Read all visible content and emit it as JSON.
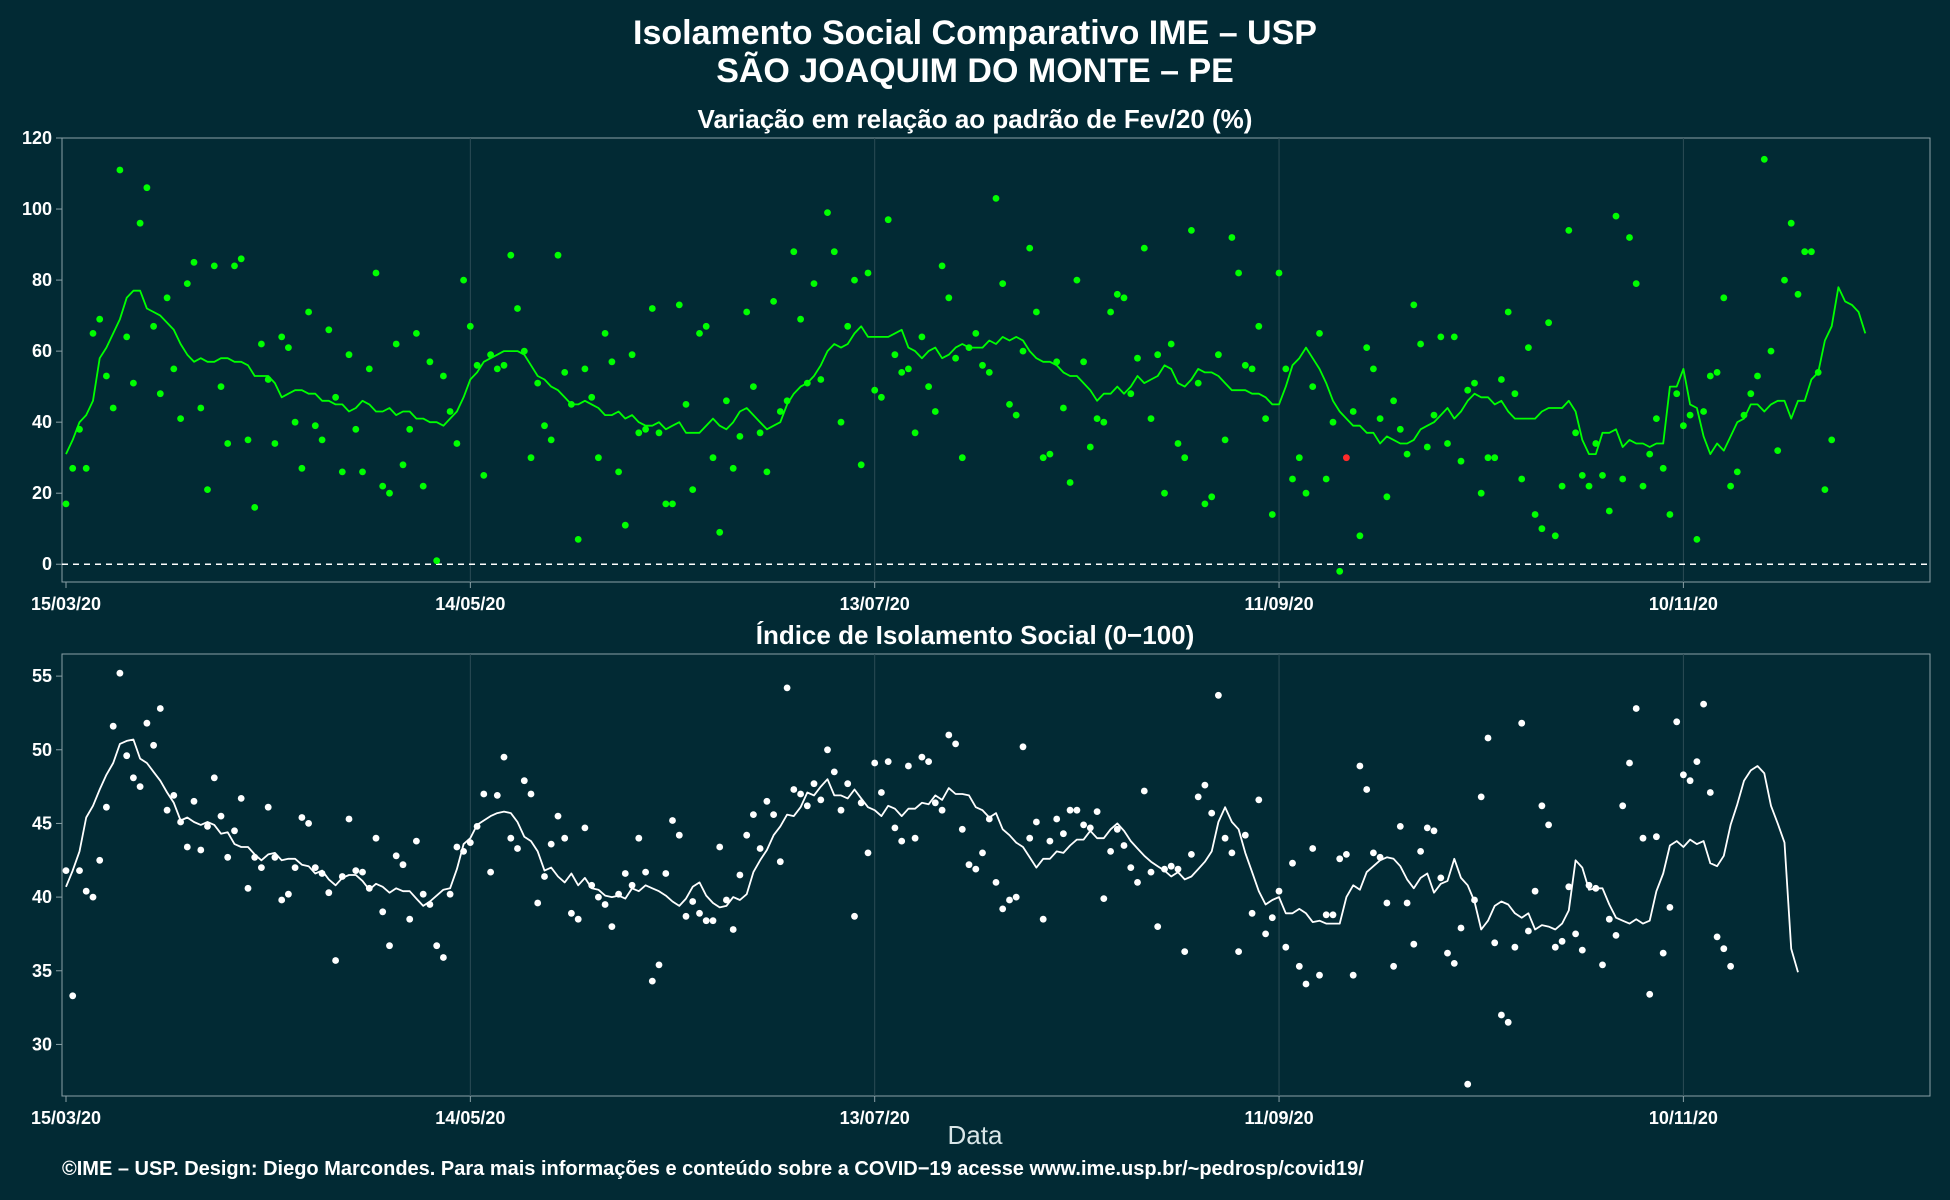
{
  "header": {
    "title_line1": "Isolamento Social Comparativo IME – USP",
    "title_line2": "SÃO JOAQUIM DO MONTE – PE"
  },
  "footer": {
    "credit": "©IME – USP. Design: Diego Marcondes. Para mais informações e conteúdo sobre a COVID−19 acesse www.ime.usp.br/~pedrosp/covid19/"
  },
  "colors": {
    "background": "#022a34",
    "grid": "#2c4c55",
    "panel_border": "#8aa0a6",
    "variation_series": "#00ff00",
    "negative_point": "#ff2a2a",
    "index_series": "#ffffff"
  },
  "chart_data": [
    {
      "type": "scatter",
      "title": "Variação em relação ao padrão de Fev/20 (%)",
      "xlabel": "",
      "ylabel": "",
      "x_start": "15/03/20",
      "x_end": "16/12/20",
      "x_tick_labels": [
        "15/03/20",
        "14/05/20",
        "13/07/20",
        "11/09/20",
        "10/11/20"
      ],
      "ylim": [
        -5,
        120
      ],
      "y_ticks": [
        0,
        20,
        40,
        60,
        80,
        100,
        120
      ],
      "reference_line": 0,
      "grid": true,
      "daily_points": [
        17,
        27,
        38,
        27,
        65,
        69,
        53,
        44,
        111,
        64,
        51,
        96,
        106,
        67,
        48,
        75,
        55,
        41,
        79,
        85,
        44,
        21,
        84,
        50,
        34,
        84,
        86,
        35,
        16,
        62,
        52,
        34,
        64,
        61,
        40,
        27,
        71,
        39,
        35,
        66,
        47,
        26,
        59,
        38,
        26,
        55,
        82,
        22,
        20,
        62,
        28,
        38,
        65,
        22,
        57,
        1,
        53,
        43,
        34,
        80,
        67,
        56,
        25,
        59,
        55,
        56,
        87,
        72,
        60,
        30,
        51,
        39,
        35,
        87,
        54,
        45,
        7,
        55,
        47,
        30,
        65,
        57,
        26,
        11,
        59,
        37,
        38,
        72,
        37,
        17,
        17,
        73,
        45,
        21,
        65,
        67,
        30,
        9,
        46,
        27,
        36,
        71,
        50,
        37,
        26,
        74,
        43,
        46,
        88,
        69,
        51,
        79,
        52,
        99,
        88,
        40,
        67,
        80,
        28,
        82,
        49,
        47,
        97,
        59,
        54,
        55,
        37,
        64,
        50,
        43,
        84,
        75,
        58,
        30,
        61,
        65,
        56,
        54,
        103,
        79,
        45,
        42,
        60,
        89,
        71,
        30,
        31,
        57,
        44,
        23,
        80,
        57,
        33,
        41,
        40,
        71,
        76,
        75,
        48,
        58,
        89,
        41,
        59,
        20,
        62,
        34,
        30,
        94,
        51,
        17,
        19,
        59,
        35,
        92,
        82,
        56,
        55,
        67,
        41,
        14,
        82,
        55,
        24,
        30,
        20,
        50,
        65,
        24,
        40,
        -2,
        30,
        43,
        8,
        61,
        55,
        41,
        19,
        46,
        38,
        31,
        73,
        62,
        33,
        42,
        64,
        34,
        64,
        29,
        49,
        51,
        20,
        30,
        30,
        52,
        71,
        48,
        24,
        61,
        14,
        10,
        68,
        8,
        22,
        94,
        37,
        25,
        22,
        34,
        25,
        15,
        98,
        24,
        92,
        79,
        22,
        31,
        41,
        27,
        14,
        48,
        39,
        42,
        7,
        43,
        53,
        54,
        75,
        22,
        26,
        42,
        48,
        53,
        114,
        60,
        32,
        80,
        96,
        76,
        88,
        88,
        54,
        21,
        35
      ],
      "moving_average": [
        31,
        35,
        40,
        42,
        46,
        58,
        61,
        65,
        69,
        75,
        77,
        77,
        72,
        71,
        70,
        68,
        66,
        62,
        59,
        57,
        58,
        57,
        57,
        58,
        58,
        57,
        57,
        56,
        53,
        53,
        53,
        51,
        47,
        48,
        49,
        49,
        48,
        48,
        46,
        46,
        45,
        45,
        43,
        44,
        46,
        45,
        43,
        43,
        44,
        42,
        43,
        43,
        41,
        41,
        40,
        40,
        39,
        41,
        43,
        47,
        52,
        54,
        57,
        58,
        59,
        60,
        60,
        60,
        59,
        56,
        53,
        52,
        50,
        49,
        47,
        45,
        45,
        46,
        45,
        44,
        42,
        42,
        43,
        41,
        42,
        40,
        39,
        39,
        40,
        38,
        39,
        40,
        37,
        37,
        37,
        39,
        41,
        39,
        38,
        40,
        43,
        44,
        42,
        40,
        38,
        39,
        40,
        45,
        48,
        50,
        51,
        53,
        56,
        60,
        62,
        61,
        62,
        65,
        67,
        64,
        64,
        64,
        64,
        65,
        66,
        61,
        60,
        58,
        60,
        61,
        58,
        59,
        61,
        62,
        61,
        61,
        61,
        63,
        62,
        64,
        63,
        64,
        63,
        60,
        58,
        57,
        57,
        56,
        54,
        53,
        53,
        51,
        49,
        46,
        48,
        48,
        50,
        48,
        50,
        53,
        51,
        52,
        53,
        56,
        55,
        51,
        50,
        52,
        55,
        54,
        54,
        53,
        51,
        49,
        49,
        49,
        48,
        48,
        47,
        45,
        45,
        50,
        56,
        58,
        61,
        58,
        55,
        51,
        46,
        43,
        41,
        39,
        39,
        37,
        37,
        34,
        36,
        35,
        34,
        34,
        35,
        38,
        39,
        40,
        42,
        44,
        41,
        43,
        46,
        48,
        47,
        47,
        45,
        46,
        43,
        41,
        41,
        41,
        41,
        43,
        44,
        44,
        44,
        46,
        43,
        35,
        31,
        31,
        37,
        37,
        38,
        33,
        35,
        34,
        34,
        33,
        34,
        34,
        50,
        50,
        55,
        45,
        44,
        36,
        31,
        34,
        32,
        36,
        40,
        41,
        45,
        45,
        43,
        45,
        46,
        46,
        41,
        46,
        46,
        52,
        54,
        63,
        67,
        78,
        74,
        73,
        71,
        65
      ],
      "negative_point_index": 190
    },
    {
      "type": "scatter",
      "title": "Índice de Isolamento Social (0−100)",
      "xlabel": "Data",
      "ylabel": "",
      "x_start": "15/03/20",
      "x_end": "16/12/20",
      "x_tick_labels": [
        "15/03/20",
        "14/05/20",
        "13/07/20",
        "11/09/20",
        "10/11/20"
      ],
      "ylim": [
        26.5,
        56.5
      ],
      "y_ticks": [
        30,
        35,
        40,
        45,
        50,
        55
      ],
      "grid": true,
      "daily_points": [
        41.8,
        33.3,
        41.8,
        40.4,
        40.0,
        42.5,
        46.1,
        51.6,
        55.2,
        49.6,
        48.1,
        47.5,
        51.8,
        50.3,
        52.8,
        45.9,
        46.9,
        45.1,
        43.4,
        46.5,
        43.2,
        44.8,
        48.1,
        45.5,
        42.7,
        44.5,
        46.7,
        40.6,
        42.7,
        42.0,
        46.1,
        42.7,
        39.8,
        40.2,
        42.0,
        45.4,
        45.0,
        42.0,
        41.6,
        40.3,
        35.7,
        41.4,
        45.3,
        41.8,
        41.7,
        40.6,
        44.0,
        39.0,
        36.7,
        42.8,
        42.2,
        38.5,
        43.8,
        40.2,
        39.5,
        36.7,
        35.9,
        40.2,
        43.4,
        43.1,
        43.7,
        44.8,
        47.0,
        41.7,
        46.9,
        49.5,
        44.0,
        43.3,
        47.9,
        47.0,
        39.6,
        41.4,
        43.6,
        45.5,
        44.0,
        38.9,
        38.5,
        44.7,
        40.8,
        40.0,
        39.5,
        38.0,
        40.2,
        41.6,
        40.8,
        44.0,
        41.7,
        34.3,
        35.4,
        41.6,
        45.2,
        44.2,
        38.7,
        39.7,
        38.9,
        38.4,
        38.4,
        43.4,
        39.8,
        37.8,
        41.5,
        44.2,
        45.6,
        43.3,
        46.5,
        45.6,
        42.4,
        54.2,
        47.3,
        47.0,
        46.2,
        47.7,
        46.6,
        50.0,
        48.5,
        45.9,
        47.7,
        38.7,
        46.4,
        43.0,
        49.1,
        47.1,
        49.2,
        44.7,
        43.8,
        48.9,
        44.0,
        49.5,
        49.2,
        46.4,
        45.9,
        51.0,
        50.4,
        44.6,
        42.2,
        41.9,
        43.0,
        45.3,
        41.0,
        39.2,
        39.8,
        40.0,
        50.2,
        44.0,
        45.1,
        38.5,
        43.8,
        45.3,
        44.3,
        45.9,
        45.9,
        44.9,
        44.7,
        45.8,
        39.9,
        43.1,
        44.6,
        43.5,
        42.0,
        41.0,
        47.2,
        41.7,
        38.0,
        41.9,
        42.1,
        41.9,
        36.3,
        42.9,
        46.8,
        47.6,
        45.7,
        53.7,
        44.0,
        43.0,
        36.3,
        44.2,
        38.9,
        46.6,
        37.5,
        38.6,
        40.4,
        36.6,
        42.3,
        35.3,
        34.1,
        43.3,
        34.7,
        38.8,
        38.8,
        42.6,
        42.9,
        34.7,
        48.9,
        47.3,
        43.0,
        42.7,
        39.6,
        35.3,
        44.8,
        39.6,
        36.8,
        43.1,
        44.7,
        44.5,
        41.3,
        36.2,
        35.5,
        37.9,
        27.3,
        39.8,
        46.8,
        50.8,
        36.9,
        32.0,
        31.5,
        36.6,
        51.8,
        37.7,
        40.4,
        46.2,
        44.9,
        36.6,
        37.0,
        40.7,
        37.5,
        36.4,
        40.8,
        40.6,
        35.4,
        38.5,
        37.4,
        46.2,
        49.1,
        52.8,
        44.0,
        33.4,
        44.1,
        36.2,
        39.3,
        51.9,
        48.3,
        47.9,
        49.2,
        53.1,
        47.1,
        37.3,
        36.5,
        35.3
      ],
      "moving_average": [
        40.7,
        41.8,
        43.1,
        45.4,
        46.2,
        47.3,
        48.3,
        49.1,
        50.4,
        50.6,
        50.7,
        49.4,
        49.1,
        48.5,
        47.9,
        47.1,
        46.4,
        45.2,
        45.4,
        45.1,
        44.9,
        45.1,
        44.9,
        44.3,
        44.4,
        43.6,
        43.4,
        43.4,
        42.9,
        42.5,
        42.9,
        43.0,
        42.5,
        42.6,
        42.6,
        42.2,
        42.1,
        41.6,
        41.8,
        41.2,
        40.8,
        41.3,
        41.5,
        41.5,
        41.1,
        40.5,
        40.9,
        40.7,
        40.3,
        40.6,
        40.4,
        40.4,
        39.9,
        39.4,
        39.7,
        40.1,
        40.5,
        40.6,
        41.9,
        43.6,
        44.0,
        44.9,
        45.2,
        45.5,
        45.7,
        45.8,
        45.7,
        45.1,
        44.1,
        43.8,
        43.1,
        41.8,
        42.0,
        41.4,
        41.0,
        41.6,
        40.8,
        41.3,
        40.6,
        40.5,
        40.1,
        40.0,
        40.1,
        39.9,
        40.6,
        40.4,
        40.8,
        40.6,
        40.4,
        40.1,
        39.7,
        39.4,
        39.9,
        40.7,
        41.0,
        40.1,
        39.6,
        39.3,
        39.4,
        40.0,
        39.8,
        40.2,
        41.7,
        42.5,
        43.2,
        44.2,
        44.8,
        45.6,
        45.5,
        46.1,
        47.1,
        46.9,
        47.5,
        48.0,
        46.9,
        46.9,
        46.7,
        47.3,
        46.7,
        46.1,
        45.9,
        45.5,
        46.2,
        46.0,
        45.5,
        46.0,
        46.0,
        46.4,
        46.3,
        46.9,
        46.6,
        47.4,
        47.0,
        47.0,
        46.9,
        46.1,
        45.9,
        45.4,
        45.7,
        44.6,
        44.2,
        43.7,
        43.4,
        42.7,
        42.0,
        42.6,
        42.6,
        43.1,
        43.0,
        43.5,
        43.9,
        43.9,
        44.5,
        44.0,
        44.0,
        44.6,
        45.0,
        44.5,
        43.8,
        43.3,
        42.8,
        42.4,
        42.1,
        41.8,
        41.4,
        41.7,
        41.2,
        41.4,
        41.9,
        42.4,
        43.1,
        45.1,
        46.1,
        45.1,
        44.6,
        43.0,
        41.7,
        40.4,
        39.5,
        39.8,
        40.0,
        38.9,
        38.9,
        39.2,
        38.9,
        38.3,
        38.4,
        38.2,
        38.2,
        38.2,
        40.0,
        40.8,
        40.5,
        41.7,
        42.1,
        42.5,
        42.7,
        42.6,
        42.1,
        41.2,
        40.6,
        41.3,
        41.6,
        40.3,
        40.9,
        41.1,
        42.6,
        41.3,
        40.8,
        39.7,
        37.8,
        38.4,
        39.4,
        39.7,
        39.5,
        38.9,
        38.6,
        38.9,
        37.8,
        38.1,
        38.0,
        37.8,
        38.2,
        39.1,
        42.5,
        42.0,
        40.5,
        40.6,
        40.6,
        39.5,
        38.6,
        38.4,
        38.2,
        38.5,
        38.2,
        38.4,
        40.4,
        41.6,
        43.5,
        43.8,
        43.4,
        43.9,
        43.6,
        43.8,
        42.3,
        42.1,
        42.8,
        44.9,
        46.3,
        47.9,
        48.6,
        48.9,
        48.4,
        46.2,
        45.0,
        43.7,
        36.5,
        34.9
      ]
    }
  ]
}
